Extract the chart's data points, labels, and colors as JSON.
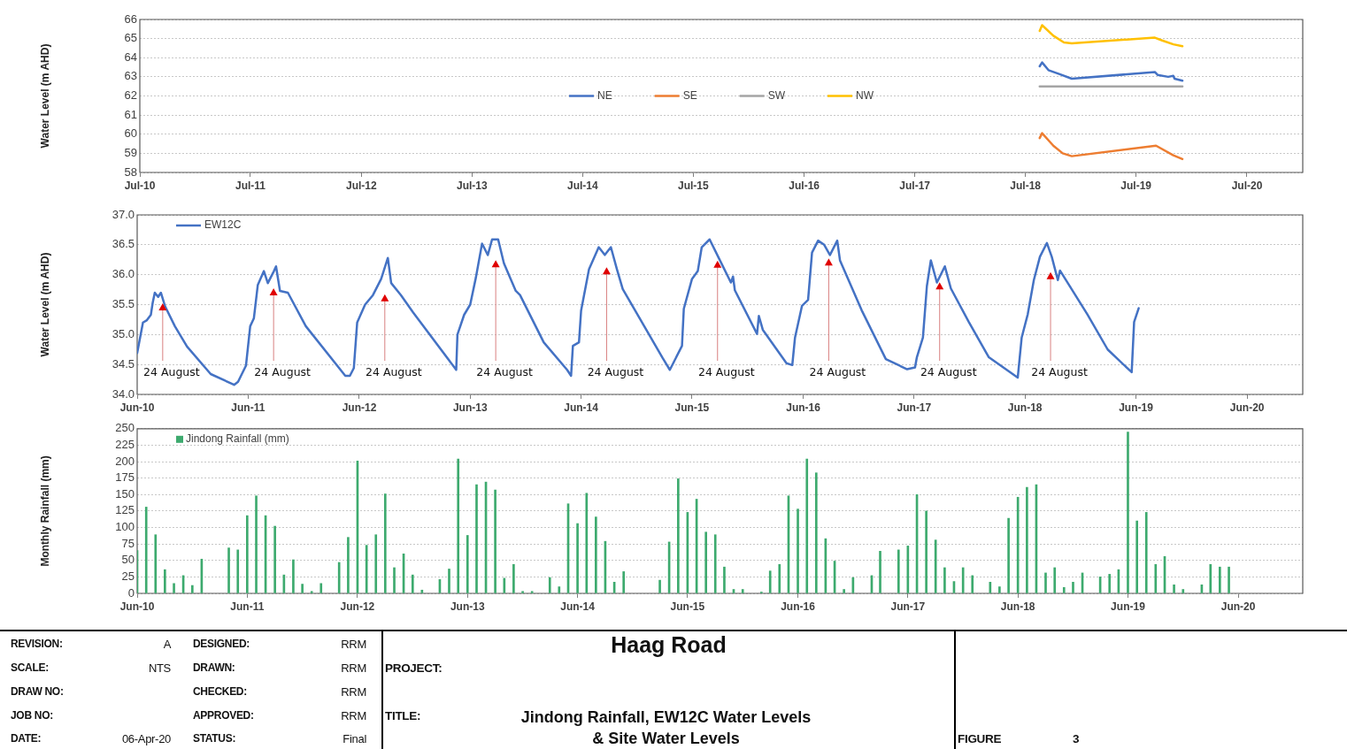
{
  "chart_data": [
    {
      "type": "line",
      "ylabel": "Water Level (m AHD)",
      "xlim": [
        "2010-07-01",
        "2021-01-01"
      ],
      "xticks": [
        {
          "value": "2010-07-01",
          "label": "Jul-10"
        },
        {
          "value": "2011-07-01",
          "label": "Jul-11"
        },
        {
          "value": "2012-07-01",
          "label": "Jul-12"
        },
        {
          "value": "2013-07-01",
          "label": "Jul-13"
        },
        {
          "value": "2014-07-01",
          "label": "Jul-14"
        },
        {
          "value": "2015-07-01",
          "label": "Jul-15"
        },
        {
          "value": "2016-07-01",
          "label": "Jul-16"
        },
        {
          "value": "2017-07-01",
          "label": "Jul-17"
        },
        {
          "value": "2018-07-01",
          "label": "Jul-18"
        },
        {
          "value": "2019-07-01",
          "label": "Jul-19"
        },
        {
          "value": "2020-07-01",
          "label": "Jul-20"
        }
      ],
      "ylim": [
        58,
        66
      ],
      "yticks": [
        58,
        59,
        60,
        61,
        62,
        63,
        64,
        65,
        66
      ],
      "grid": "y",
      "legend": "center",
      "marker": "none",
      "line_style": "solid",
      "series": [
        {
          "name": "NE",
          "color": "#4472c4",
          "x": [
            "2018-08-17",
            "2018-08-25",
            "2018-09-15",
            "2018-10-20",
            "2018-12-01",
            "2019-09-01",
            "2019-09-10",
            "2019-10-15",
            "2019-11-01",
            "2019-11-05",
            "2019-12-01"
          ],
          "values": [
            63.55,
            63.75,
            63.35,
            63.15,
            62.9,
            63.25,
            63.1,
            63.0,
            63.05,
            62.9,
            62.8
          ]
        },
        {
          "name": "SE",
          "color": "#ed7d31",
          "x": [
            "2018-08-17",
            "2018-08-25",
            "2018-10-01",
            "2018-11-01",
            "2018-12-01",
            "2019-09-05",
            "2019-11-01",
            "2019-12-01"
          ],
          "values": [
            59.8,
            60.05,
            59.4,
            59.0,
            58.85,
            59.4,
            58.9,
            58.7
          ]
        },
        {
          "name": "SW",
          "color": "#a5a5a5",
          "x": [
            "2018-08-17",
            "2019-12-01"
          ],
          "values": [
            62.5,
            62.5
          ]
        },
        {
          "name": "NW",
          "color": "#ffc000",
          "x": [
            "2018-08-17",
            "2018-08-25",
            "2018-10-01",
            "2018-11-05",
            "2018-12-01",
            "2019-09-01",
            "2019-09-25",
            "2019-11-01",
            "2019-12-01"
          ],
          "values": [
            65.4,
            65.7,
            65.15,
            64.8,
            64.75,
            65.05,
            64.9,
            64.7,
            64.6
          ]
        }
      ]
    },
    {
      "type": "line",
      "ylabel": "Water Level (m AHD)",
      "xlim": [
        "2010-06-01",
        "2020-12-01"
      ],
      "xticks": [
        {
          "value": "2010-06-01",
          "label": "Jun-10"
        },
        {
          "value": "2011-06-01",
          "label": "Jun-11"
        },
        {
          "value": "2012-06-01",
          "label": "Jun-12"
        },
        {
          "value": "2013-06-01",
          "label": "Jun-13"
        },
        {
          "value": "2014-06-01",
          "label": "Jun-14"
        },
        {
          "value": "2015-06-01",
          "label": "Jun-15"
        },
        {
          "value": "2016-06-01",
          "label": "Jun-16"
        },
        {
          "value": "2017-06-01",
          "label": "Jun-17"
        },
        {
          "value": "2018-06-01",
          "label": "Jun-18"
        },
        {
          "value": "2019-06-01",
          "label": "Jun-19"
        },
        {
          "value": "2020-06-01",
          "label": "Jun-20"
        }
      ],
      "ylim": [
        34,
        37
      ],
      "yticks": [
        {
          "value": 34,
          "label": "34.0"
        },
        34.5,
        {
          "value": 35,
          "label": "35.0"
        },
        35.5,
        {
          "value": 36,
          "label": "36.0"
        },
        36.5,
        {
          "value": 37,
          "label": "37.0"
        }
      ],
      "grid": "y",
      "legend": "top left",
      "marker": "none",
      "line_style": "solid",
      "x": [
        "2010-06-01",
        "2010-06-20",
        "2010-07-03",
        "2010-07-16",
        "2010-07-22",
        "2010-07-29",
        "2010-08-09",
        "2010-08-18",
        "2010-09-01",
        "2010-10-03",
        "2010-11-12",
        "2011-01-29",
        "2011-04-16",
        "2011-04-29",
        "2011-05-25",
        "2011-06-08",
        "2011-06-20",
        "2011-07-03",
        "2011-07-23",
        "2011-08-05",
        "2011-08-25",
        "2011-09-01",
        "2011-09-14",
        "2011-10-10",
        "2011-12-08",
        "2012-04-16",
        "2012-05-01",
        "2012-05-14",
        "2012-05-25",
        "2012-06-20",
        "2012-07-16",
        "2012-08-12",
        "2012-09-03",
        "2012-09-14",
        "2012-10-16",
        "2012-11-25",
        "2013-04-16",
        "2013-04-20",
        "2013-05-12",
        "2013-06-01",
        "2013-06-20",
        "2013-07-10",
        "2013-07-29",
        "2013-08-12",
        "2013-09-01",
        "2013-09-20",
        "2013-10-29",
        "2013-11-12",
        "2014-01-29",
        "2014-04-16",
        "2014-04-29",
        "2014-05-05",
        "2014-05-25",
        "2014-06-01",
        "2014-06-27",
        "2014-07-29",
        "2014-08-18",
        "2014-09-07",
        "2014-09-27",
        "2014-10-16",
        "2015-02-24",
        "2015-03-20",
        "2015-04-29",
        "2015-05-05",
        "2015-06-01",
        "2015-06-20",
        "2015-07-03",
        "2015-07-29",
        "2015-08-29",
        "2015-10-07",
        "2015-10-14",
        "2015-10-20",
        "2016-01-01",
        "2016-01-07",
        "2016-01-20",
        "2016-04-07",
        "2016-04-26",
        "2016-05-05",
        "2016-05-28",
        "2016-06-17",
        "2016-06-30",
        "2016-07-20",
        "2016-08-09",
        "2016-08-28",
        "2016-09-21",
        "2016-09-30",
        "2016-12-10",
        "2017-02-28",
        "2017-05-09",
        "2017-06-04",
        "2017-06-10",
        "2017-06-30",
        "2017-07-13",
        "2017-07-26",
        "2017-08-15",
        "2017-09-10",
        "2017-09-30",
        "2017-11-28",
        "2018-02-02",
        "2018-05-08",
        "2018-05-21",
        "2018-06-10",
        "2018-06-30",
        "2018-07-20",
        "2018-08-12",
        "2018-08-28",
        "2018-09-17",
        "2018-09-24",
        "2018-12-23",
        "2019-02-28",
        "2019-05-18",
        "2019-05-26",
        "2019-06-10"
      ],
      "series": [
        {
          "name": "EW12C",
          "color": "#4472c4",
          "values": [
            34.69,
            35.2,
            35.24,
            35.33,
            35.53,
            35.7,
            35.63,
            35.7,
            35.47,
            35.14,
            34.8,
            34.34,
            34.16,
            34.21,
            34.48,
            35.14,
            35.27,
            35.83,
            36.06,
            35.86,
            36.06,
            36.14,
            35.73,
            35.7,
            35.14,
            34.31,
            34.31,
            34.44,
            35.2,
            35.5,
            35.66,
            35.93,
            36.28,
            35.86,
            35.66,
            35.37,
            34.41,
            35.0,
            35.33,
            35.5,
            35.96,
            36.52,
            36.33,
            36.59,
            36.59,
            36.19,
            35.73,
            35.66,
            34.87,
            34.41,
            34.31,
            34.81,
            34.87,
            35.4,
            36.09,
            36.46,
            36.33,
            36.46,
            36.09,
            35.76,
            34.61,
            34.41,
            34.81,
            35.43,
            35.93,
            36.06,
            36.46,
            36.59,
            36.27,
            35.87,
            35.97,
            35.74,
            35.01,
            35.31,
            35.08,
            34.52,
            34.49,
            34.95,
            35.48,
            35.58,
            36.37,
            36.57,
            36.5,
            36.33,
            36.57,
            36.24,
            35.41,
            34.59,
            34.42,
            34.45,
            34.62,
            34.95,
            35.81,
            36.24,
            35.87,
            36.14,
            35.77,
            35.21,
            34.62,
            34.28,
            34.95,
            35.34,
            35.91,
            36.3,
            36.53,
            36.3,
            35.91,
            36.07,
            35.34,
            34.75,
            34.37,
            35.21,
            35.44
          ]
        }
      ],
      "annotations": [
        {
          "text": "24 August",
          "x": "2010-08-24",
          "y": 35.45
        },
        {
          "text": "24 August",
          "x": "2011-08-24",
          "y": 35.7
        },
        {
          "text": "24 August",
          "x": "2012-08-24",
          "y": 35.6
        },
        {
          "text": "24 August",
          "x": "2013-08-24",
          "y": 36.17
        },
        {
          "text": "24 August",
          "x": "2014-08-24",
          "y": 36.05
        },
        {
          "text": "24 August",
          "x": "2015-08-24",
          "y": 36.16
        },
        {
          "text": "24 August",
          "x": "2016-08-24",
          "y": 36.2
        },
        {
          "text": "24 August",
          "x": "2017-08-24",
          "y": 35.8
        },
        {
          "text": "24 August",
          "x": "2018-08-24",
          "y": 35.97
        }
      ]
    },
    {
      "type": "bar",
      "ylabel": "Monthly Rainfall (mm)",
      "xlim": [
        "2010-06-01",
        "2021-01-01"
      ],
      "xticks": [
        {
          "value": "2010-06-01",
          "label": "Jun-10"
        },
        {
          "value": "2011-06-01",
          "label": "Jun-11"
        },
        {
          "value": "2012-06-01",
          "label": "Jun-12"
        },
        {
          "value": "2013-06-01",
          "label": "Jun-13"
        },
        {
          "value": "2014-06-01",
          "label": "Jun-14"
        },
        {
          "value": "2015-06-01",
          "label": "Jun-15"
        },
        {
          "value": "2016-06-01",
          "label": "Jun-16"
        },
        {
          "value": "2017-06-01",
          "label": "Jun-17"
        },
        {
          "value": "2018-06-01",
          "label": "Jun-18"
        },
        {
          "value": "2019-06-01",
          "label": "Jun-19"
        },
        {
          "value": "2020-06-01",
          "label": "Jun-20"
        }
      ],
      "ylim": [
        0,
        250
      ],
      "yticks": [
        0,
        25,
        50,
        75,
        100,
        125,
        150,
        175,
        200,
        225,
        250
      ],
      "grid": "y",
      "legend": "top left",
      "x": [
        "2010-06",
        "2010-07",
        "2010-08",
        "2010-09",
        "2010-10",
        "2010-11",
        "2010-12",
        "2011-01",
        "2011-04",
        "2011-05",
        "2011-06",
        "2011-07",
        "2011-08",
        "2011-09",
        "2011-10",
        "2011-11",
        "2011-12",
        "2012-01",
        "2012-02",
        "2012-04",
        "2012-05",
        "2012-06",
        "2012-07",
        "2012-08",
        "2012-09",
        "2012-10",
        "2012-11",
        "2012-12",
        "2013-01",
        "2013-03",
        "2013-04",
        "2013-05",
        "2013-06",
        "2013-07",
        "2013-08",
        "2013-09",
        "2013-10",
        "2013-11",
        "2013-12",
        "2014-01",
        "2014-03",
        "2014-04",
        "2014-05",
        "2014-06",
        "2014-07",
        "2014-08",
        "2014-09",
        "2014-10",
        "2014-11",
        "2015-03",
        "2015-04",
        "2015-05",
        "2015-06",
        "2015-07",
        "2015-08",
        "2015-09",
        "2015-10",
        "2015-11",
        "2015-12",
        "2016-02",
        "2016-03",
        "2016-04",
        "2016-05",
        "2016-06",
        "2016-07",
        "2016-08",
        "2016-09",
        "2016-10",
        "2016-11",
        "2016-12",
        "2017-02",
        "2017-03",
        "2017-05",
        "2017-06",
        "2017-07",
        "2017-08",
        "2017-09",
        "2017-10",
        "2017-11",
        "2017-12",
        "2018-01",
        "2018-03",
        "2018-04",
        "2018-05",
        "2018-06",
        "2018-07",
        "2018-08",
        "2018-09",
        "2018-10",
        "2018-11",
        "2018-12",
        "2019-01",
        "2019-03",
        "2019-04",
        "2019-05",
        "2019-06",
        "2019-07",
        "2019-08",
        "2019-09",
        "2019-10",
        "2019-11",
        "2019-12",
        "2020-02",
        "2020-03",
        "2020-04",
        "2020-05"
      ],
      "series": [
        {
          "name": "Jindong Rainfall (mm)",
          "color": "#3daa6e",
          "values": [
            65,
            131,
            89,
            36,
            15,
            27,
            12,
            52,
            69,
            66,
            118,
            148,
            118,
            102,
            28,
            51,
            14,
            3,
            15,
            47,
            85,
            201,
            73,
            89,
            151,
            39,
            60,
            28,
            5,
            21,
            37,
            204,
            88,
            165,
            169,
            157,
            23,
            44,
            3,
            3,
            24,
            10,
            136,
            106,
            152,
            116,
            79,
            17,
            33,
            20,
            78,
            174,
            123,
            143,
            93,
            89,
            40,
            6,
            6,
            2,
            34,
            44,
            148,
            128,
            204,
            183,
            83,
            49,
            6,
            24,
            27,
            64,
            66,
            72,
            150,
            125,
            81,
            39,
            18,
            39,
            27,
            17,
            10,
            114,
            146,
            161,
            165,
            31,
            39,
            9,
            17,
            31,
            25,
            29,
            36,
            245,
            110,
            123,
            44,
            56,
            13,
            6,
            13,
            44,
            40,
            40
          ]
        }
      ]
    },
    {
      "type": "other",
      "title": "Haag Road",
      "subtitle": "Jindong Rainfall, EW12C Water Levels & Site Water Levels",
      "annotations": [
        "REVISION:",
        "A",
        "DESIGNED:",
        "RRM",
        "SCALE:",
        "NTS",
        "DRAWN:",
        "RRM",
        "DRAW NO:",
        "CHECKED:",
        "RRM",
        "JOB NO:",
        "APPROVED:",
        "RRM",
        "DATE:",
        "06-Apr-20",
        "STATUS:",
        "Final",
        "PROJECT:",
        "TITLE:",
        "FIGURE",
        "3"
      ]
    }
  ]
}
